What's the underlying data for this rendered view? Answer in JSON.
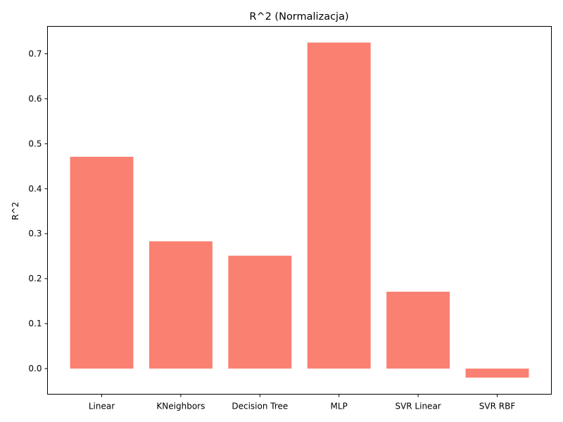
{
  "chart_data": {
    "type": "bar",
    "title": "R^2 (Normalizacja)",
    "xlabel": "",
    "ylabel": "R^2",
    "categories": [
      "Linear",
      "KNeighbors",
      "Decision Tree",
      "MLP",
      "SVR Linear",
      "SVR RBF"
    ],
    "values": [
      0.471,
      0.283,
      0.251,
      0.725,
      0.171,
      -0.02
    ],
    "yticks": [
      "0.0",
      "0.1",
      "0.2",
      "0.3",
      "0.4",
      "0.5",
      "0.6",
      "0.7"
    ],
    "ylim": [
      -0.057,
      0.761
    ],
    "bar_color": "#fa8072",
    "grid": false,
    "legend": "none"
  }
}
